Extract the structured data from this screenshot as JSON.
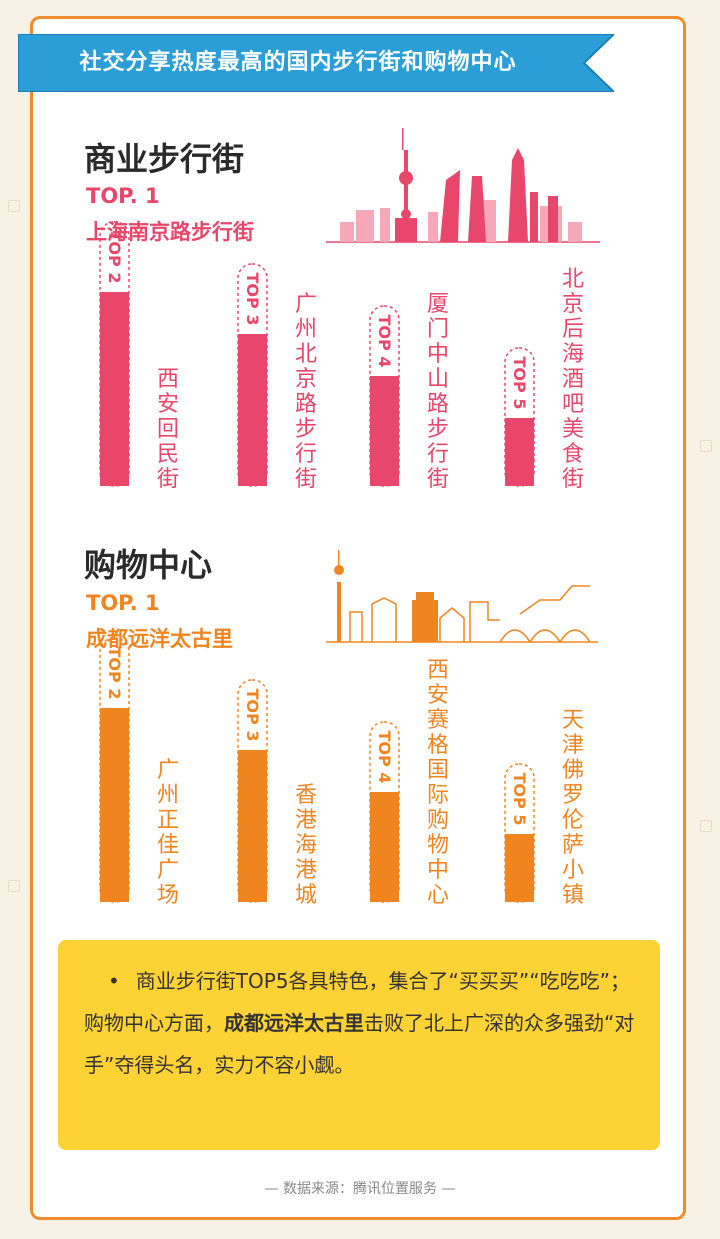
{
  "banner": {
    "title": "社交分享热度最高的国内步行街和购物中心"
  },
  "sections": [
    {
      "title": "商业步行街",
      "top_label": "TOP. 1",
      "top_name": "上海南京路步行街",
      "color": "#e8466a"
    },
    {
      "title": "购物中心",
      "top_label": "TOP. 1",
      "top_name": "成都远洋太古里",
      "color": "#f0851f"
    }
  ],
  "chart_data": [
    {
      "type": "bar",
      "categories": [
        "西安回民街",
        "广州北京路步行街",
        "厦门中山路步行街",
        "北京后海酒吧美食街"
      ],
      "rank_labels": [
        "TOP 2",
        "TOP 3",
        "TOP 4",
        "TOP 5"
      ],
      "values": [
        5,
        4,
        3,
        2
      ],
      "ylim": [
        0,
        6
      ]
    },
    {
      "type": "bar",
      "categories": [
        "广州正佳广场",
        "香港海港城",
        "西安赛格国际购物中心",
        "天津佛罗伦萨小镇"
      ],
      "rank_labels": [
        "TOP 2",
        "TOP 3",
        "TOP 4",
        "TOP 5"
      ],
      "values": [
        5,
        4,
        3,
        2
      ],
      "ylim": [
        0,
        6
      ]
    }
  ],
  "note": {
    "bullet": "•",
    "part1": "商业步行街TOP5各具特色，集合了“买买买”“吃吃吃”；购物中心方面，",
    "highlight": "成都远洋太古里",
    "part2": "击败了北上广深的众多强劲“对手”夺得头名，实力不容小觑。"
  },
  "source": "— 数据来源：腾讯位置服务 —"
}
